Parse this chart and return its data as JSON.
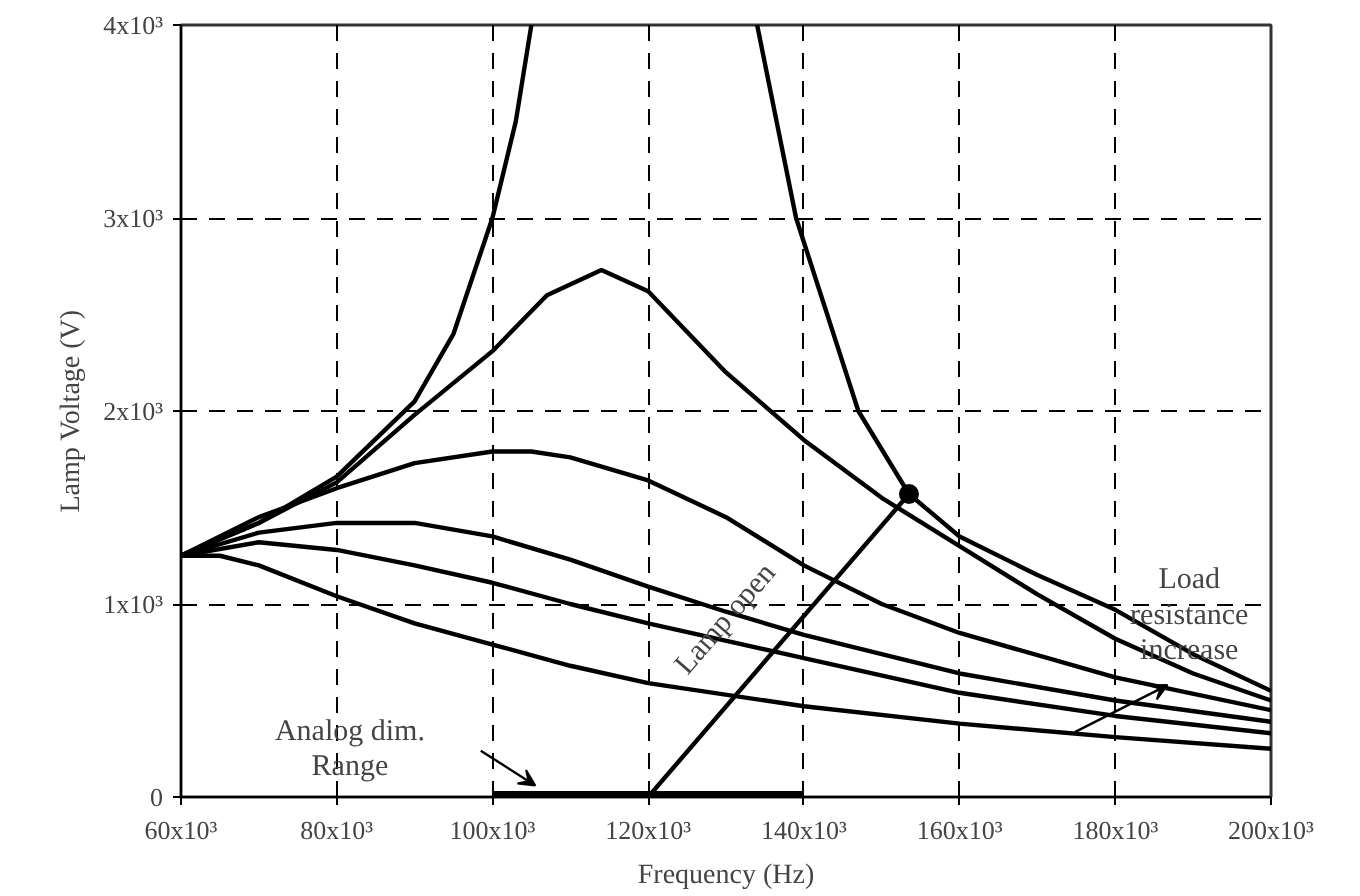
{
  "chart_data": {
    "type": "line",
    "xlabel": "Frequency (Hz)",
    "ylabel": "Lamp Voltage (V)",
    "xlim": [
      60000,
      200000
    ],
    "ylim": [
      0,
      4000
    ],
    "xticks": [
      {
        "value": 60000,
        "label": "60x10³"
      },
      {
        "value": 80000,
        "label": "80x10³"
      },
      {
        "value": 100000,
        "label": "100x10³"
      },
      {
        "value": 120000,
        "label": "120x10³"
      },
      {
        "value": 140000,
        "label": "140x10³"
      },
      {
        "value": 160000,
        "label": "160x10³"
      },
      {
        "value": 180000,
        "label": "180x10³"
      },
      {
        "value": 200000,
        "label": "200x10³"
      }
    ],
    "yticks": [
      {
        "value": 0,
        "label": "0"
      },
      {
        "value": 1000,
        "label": "1x10³"
      },
      {
        "value": 2000,
        "label": "2x10³"
      },
      {
        "value": 3000,
        "label": "3x10³"
      },
      {
        "value": 4000,
        "label": "4x10³"
      }
    ],
    "grid": true,
    "line_style": "solid",
    "series": [
      {
        "color": "#000000",
        "x": [
          60000,
          70000,
          80000,
          90000,
          95000,
          100000,
          103000,
          105000
        ],
        "values": [
          1250,
          1420,
          1660,
          2050,
          2400,
          3000,
          3500,
          4000
        ]
      },
      {
        "color": "#000000",
        "x": [
          134000,
          139000,
          147000,
          153500,
          160000,
          170000,
          180000,
          190000,
          200000
        ],
        "values": [
          4000,
          3000,
          2000,
          1570,
          1350,
          1150,
          970,
          740,
          550
        ]
      },
      {
        "color": "#000000",
        "x": [
          60000,
          70000,
          80000,
          90000,
          100000,
          107000,
          114000,
          120000,
          130000,
          140000,
          150000,
          160000,
          170000,
          180000,
          190000,
          200000
        ],
        "values": [
          1250,
          1420,
          1630,
          1980,
          2310,
          2600,
          2730,
          2620,
          2200,
          1850,
          1550,
          1300,
          1050,
          820,
          640,
          500
        ]
      },
      {
        "color": "#000000",
        "x": [
          60000,
          70000,
          80000,
          90000,
          100000,
          105000,
          110000,
          120000,
          130000,
          140000,
          150000,
          160000,
          180000,
          200000
        ],
        "values": [
          1250,
          1450,
          1600,
          1730,
          1790,
          1790,
          1760,
          1640,
          1450,
          1200,
          1000,
          850,
          620,
          450
        ]
      },
      {
        "color": "#000000",
        "x": [
          60000,
          70000,
          80000,
          90000,
          100000,
          110000,
          120000,
          130000,
          140000,
          160000,
          180000,
          200000
        ],
        "values": [
          1250,
          1370,
          1420,
          1420,
          1350,
          1230,
          1090,
          960,
          840,
          640,
          500,
          390
        ]
      },
      {
        "color": "#000000",
        "x": [
          60000,
          70000,
          80000,
          90000,
          100000,
          110000,
          120000,
          140000,
          160000,
          180000,
          200000
        ],
        "values": [
          1250,
          1320,
          1280,
          1200,
          1110,
          1000,
          900,
          720,
          540,
          420,
          330
        ]
      },
      {
        "color": "#000000",
        "x": [
          60000,
          65000,
          70000,
          80000,
          90000,
          100000,
          110000,
          120000,
          140000,
          160000,
          180000,
          200000
        ],
        "values": [
          1250,
          1250,
          1200,
          1040,
          900,
          790,
          680,
          590,
          470,
          380,
          310,
          250
        ]
      },
      {
        "color": "#000000",
        "x": [
          120000,
          153500
        ],
        "values": [
          0,
          1570
        ]
      },
      {
        "color": "#000000",
        "x": [
          100000,
          140000
        ],
        "values": [
          0,
          0
        ]
      },
      {
        "type": "scatter",
        "marker": "circle",
        "color": "#000000",
        "x": [
          153500
        ],
        "values": [
          1570
        ]
      }
    ],
    "annotations": [
      "Analog dim.\nRange",
      "Lamp open",
      "Load\nresistance\nincrease"
    ]
  }
}
